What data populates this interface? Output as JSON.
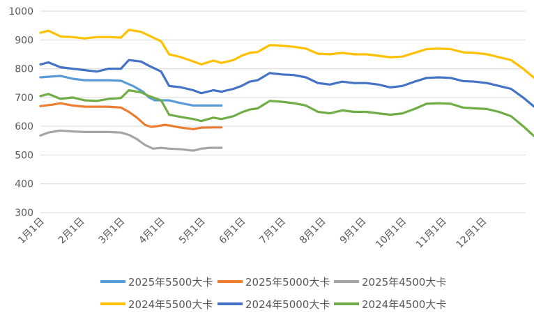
{
  "chart_data": {
    "type": "line",
    "title": "",
    "xlabel": "",
    "ylabel": "",
    "ylim": [
      300,
      1000
    ],
    "yticks": [
      300,
      400,
      500,
      600,
      700,
      800,
      900,
      1000
    ],
    "grid": true,
    "legend_position": "bottom",
    "x_tick_labels": [
      "1月1日",
      "2月1日",
      "3月1日",
      "4月1日",
      "5月1日",
      "6月1日",
      "7月1日",
      "8月1日",
      "9月1日",
      "10月1日",
      "11月1日",
      "12月1日"
    ],
    "series": [
      {
        "name": "2025年5500大卡",
        "color": "#5b9bd5",
        "x": [
          0,
          0.2,
          0.5,
          0.8,
          1.1,
          1.4,
          1.7,
          2.0,
          2.3,
          2.55,
          2.7,
          2.85,
          3.0,
          3.2,
          3.5,
          3.8,
          4.0,
          4.3,
          4.5
        ],
        "y": [
          770,
          772,
          775,
          765,
          760,
          760,
          760,
          758,
          740,
          720,
          700,
          690,
          690,
          690,
          680,
          672,
          672,
          672,
          672
        ]
      },
      {
        "name": "2025年5000大卡",
        "color": "#ed7d31",
        "x": [
          0,
          0.3,
          0.5,
          0.8,
          1.1,
          1.4,
          1.7,
          2.0,
          2.2,
          2.4,
          2.6,
          2.75,
          2.9,
          3.1,
          3.3,
          3.5,
          3.8,
          4.0,
          4.3,
          4.5
        ],
        "y": [
          670,
          675,
          680,
          672,
          668,
          668,
          668,
          665,
          650,
          630,
          605,
          598,
          600,
          605,
          600,
          595,
          590,
          595,
          596,
          596
        ]
      },
      {
        "name": "2025年4500大卡",
        "color": "#a5a5a5",
        "x": [
          0,
          0.2,
          0.5,
          0.8,
          1.1,
          1.4,
          1.7,
          2.0,
          2.2,
          2.4,
          2.6,
          2.8,
          3.0,
          3.2,
          3.5,
          3.8,
          4.0,
          4.2,
          4.5
        ],
        "y": [
          568,
          578,
          585,
          582,
          580,
          580,
          580,
          578,
          570,
          555,
          535,
          522,
          525,
          522,
          520,
          515,
          522,
          525,
          525
        ]
      },
      {
        "name": "2024年5500大卡",
        "color": "#ffc000",
        "x": [
          0,
          0.2,
          0.5,
          0.8,
          1.1,
          1.4,
          1.7,
          2.0,
          2.2,
          2.5,
          2.7,
          3.0,
          3.2,
          3.5,
          3.8,
          4.0,
          4.3,
          4.5,
          4.8,
          5.0,
          5.2,
          5.4,
          5.7,
          6.0,
          6.3,
          6.6,
          6.9,
          7.2,
          7.5,
          7.8,
          8.1,
          8.4,
          8.7,
          9.0,
          9.3,
          9.6,
          9.9,
          10.2,
          10.5,
          10.8,
          11.1,
          11.4,
          11.7,
          12.0,
          12.3
        ],
        "y": [
          925,
          932,
          912,
          910,
          905,
          910,
          910,
          908,
          935,
          928,
          915,
          895,
          850,
          840,
          825,
          815,
          828,
          820,
          830,
          845,
          855,
          858,
          882,
          880,
          876,
          870,
          852,
          850,
          855,
          850,
          850,
          845,
          840,
          842,
          855,
          868,
          870,
          868,
          857,
          855,
          850,
          840,
          830,
          800,
          765
        ]
      },
      {
        "name": "2024年5000大卡",
        "color": "#4472c4",
        "x": [
          0,
          0.2,
          0.5,
          0.8,
          1.1,
          1.4,
          1.7,
          2.0,
          2.2,
          2.5,
          2.7,
          3.0,
          3.2,
          3.5,
          3.8,
          4.0,
          4.3,
          4.5,
          4.8,
          5.0,
          5.2,
          5.4,
          5.7,
          6.0,
          6.3,
          6.6,
          6.9,
          7.2,
          7.5,
          7.8,
          8.1,
          8.4,
          8.7,
          9.0,
          9.3,
          9.6,
          9.9,
          10.2,
          10.5,
          10.8,
          11.1,
          11.4,
          11.7,
          12.0,
          12.3
        ],
        "y": [
          815,
          822,
          805,
          800,
          795,
          790,
          800,
          800,
          830,
          825,
          810,
          790,
          740,
          735,
          725,
          715,
          725,
          720,
          730,
          740,
          755,
          760,
          785,
          780,
          778,
          770,
          750,
          745,
          755,
          750,
          750,
          745,
          735,
          740,
          755,
          768,
          770,
          768,
          757,
          755,
          750,
          740,
          730,
          700,
          665
        ]
      },
      {
        "name": "2024年4500大卡",
        "color": "#70ad47",
        "x": [
          0,
          0.2,
          0.5,
          0.8,
          1.1,
          1.4,
          1.7,
          2.0,
          2.2,
          2.5,
          2.7,
          3.0,
          3.2,
          3.5,
          3.8,
          4.0,
          4.3,
          4.5,
          4.8,
          5.0,
          5.2,
          5.4,
          5.7,
          6.0,
          6.3,
          6.6,
          6.9,
          7.2,
          7.5,
          7.8,
          8.1,
          8.4,
          8.7,
          9.0,
          9.3,
          9.6,
          9.9,
          10.2,
          10.5,
          10.8,
          11.1,
          11.4,
          11.7,
          12.0,
          12.3
        ],
        "y": [
          705,
          712,
          695,
          700,
          690,
          688,
          695,
          698,
          725,
          718,
          705,
          690,
          640,
          632,
          625,
          618,
          630,
          625,
          635,
          648,
          658,
          662,
          688,
          685,
          680,
          672,
          650,
          645,
          655,
          650,
          650,
          645,
          640,
          645,
          660,
          678,
          680,
          678,
          665,
          662,
          660,
          650,
          635,
          600,
          562
        ]
      }
    ]
  }
}
